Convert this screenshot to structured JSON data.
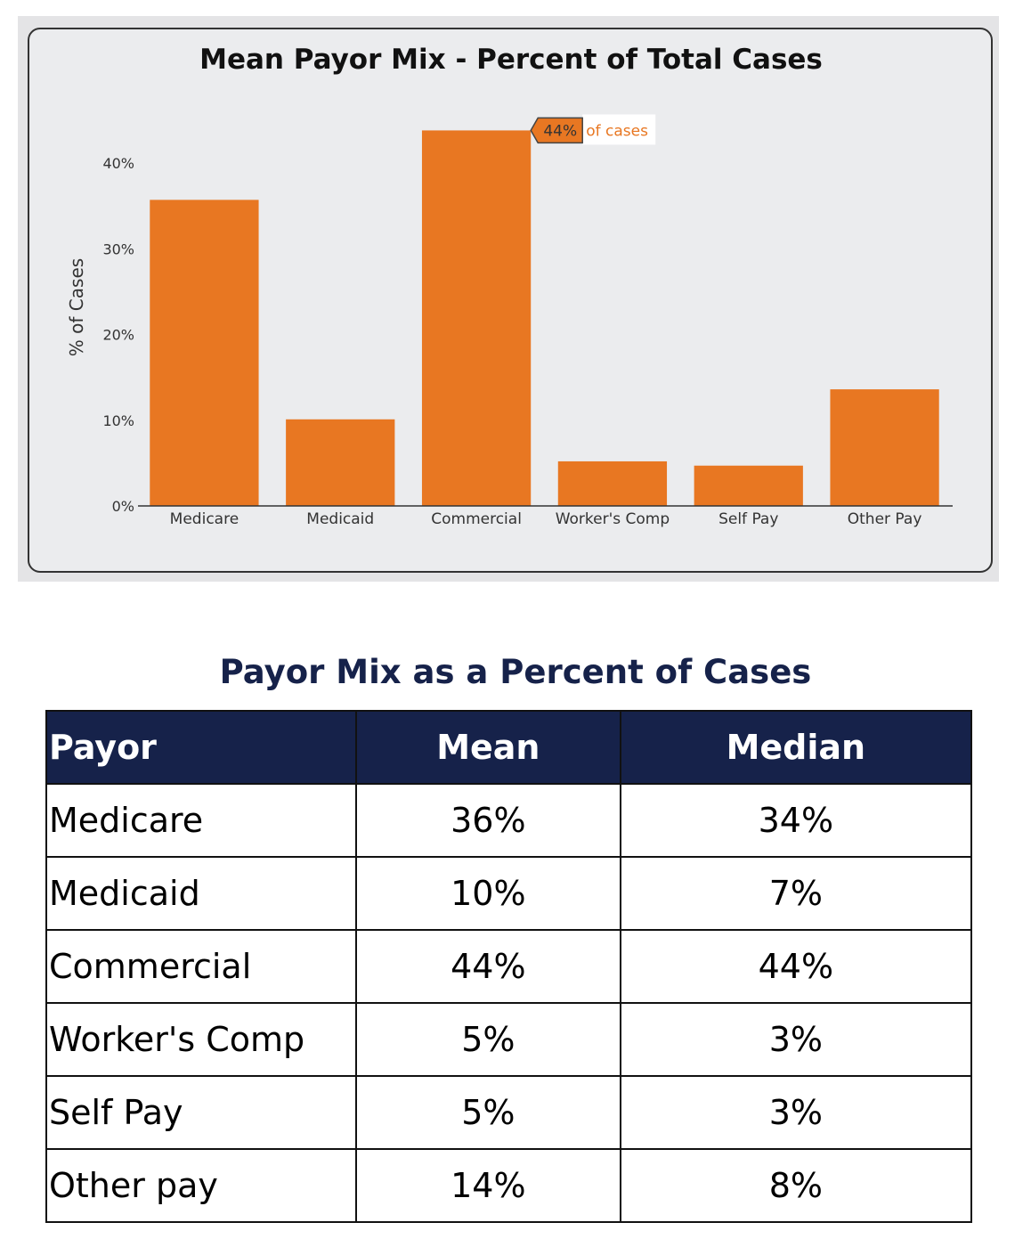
{
  "chart_data": {
    "type": "bar",
    "title": "Mean Payor Mix - Percent of Total Cases",
    "xlabel": "",
    "ylabel": "% of Cases",
    "categories": [
      "Medicare",
      "Medicaid",
      "Commercial",
      "Worker's Comp",
      "Self Pay",
      "Other Pay"
    ],
    "values": [
      35.7,
      10.1,
      43.8,
      5.2,
      4.7,
      13.6
    ],
    "ylim": [
      0,
      40
    ],
    "yticks": [
      "0%",
      "10%",
      "20%",
      "30%",
      "40%"
    ],
    "grid": false,
    "bar_color": "#e87722",
    "tooltip": {
      "value": "44%",
      "text": "of cases",
      "category": "Commercial"
    }
  },
  "table": {
    "title": "Payor Mix as a Percent of Cases",
    "headers": [
      "Payor",
      "Mean",
      "Median"
    ],
    "rows": [
      [
        "Medicare",
        "36%",
        "34%"
      ],
      [
        "Medicaid",
        "10%",
        "7%"
      ],
      [
        "Commercial",
        "44%",
        "44%"
      ],
      [
        "Worker's Comp",
        "5%",
        "3%"
      ],
      [
        "Self Pay",
        "5%",
        "3%"
      ],
      [
        "Other pay",
        "14%",
        "8%"
      ]
    ],
    "header_color": "#16224a"
  }
}
